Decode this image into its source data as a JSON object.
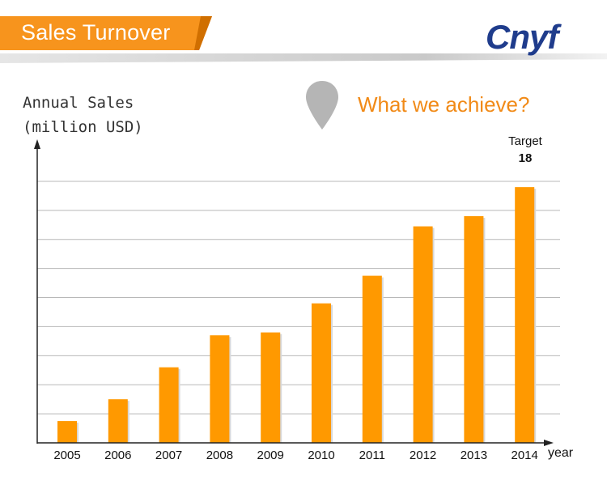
{
  "header": {
    "title": "Sales Turnover",
    "logo_text": "Cnyf",
    "accent_color": "#f7941d",
    "logo_color": "#1f3c8c"
  },
  "headline": {
    "text": "What we achieve?",
    "icon": "map-pin-icon",
    "color": "#f18a17"
  },
  "chart_data": {
    "type": "bar",
    "ylabel": "Annual Sales\n(million USD)",
    "xlabel": "year",
    "categories": [
      "2005",
      "2006",
      "2007",
      "2008",
      "2009",
      "2010",
      "2011",
      "2012",
      "2013",
      "2014"
    ],
    "values": [
      1.5,
      3.0,
      5.2,
      7.4,
      7.6,
      9.6,
      11.5,
      14.9,
      15.6,
      17.6
    ],
    "ylim": [
      0,
      19
    ],
    "grid": true,
    "bar_color": "#ff9900",
    "annotation": {
      "label": "Target",
      "value": "18",
      "category": "2014"
    }
  }
}
